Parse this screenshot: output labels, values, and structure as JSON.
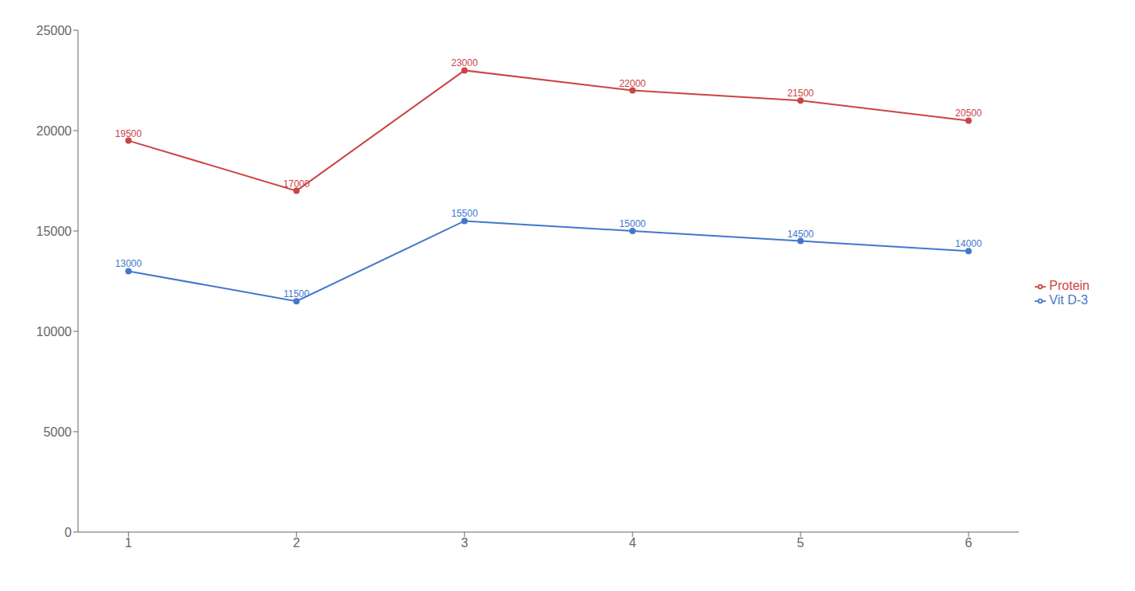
{
  "chart_data": {
    "type": "line",
    "x": [
      1,
      2,
      3,
      4,
      5,
      6
    ],
    "xlim": [
      0.7,
      6.3
    ],
    "xticks": [
      1,
      2,
      3,
      4,
      5,
      6
    ],
    "ylim": [
      0,
      25000
    ],
    "yticks": [
      0,
      5000,
      10000,
      15000,
      20000,
      25000
    ],
    "series": [
      {
        "name": "Protein",
        "color": "#cc4444",
        "values": [
          19500,
          17000,
          23000,
          22000,
          21500,
          20500
        ]
      },
      {
        "name": "Vit D-3",
        "color": "#4477cc",
        "values": [
          13000,
          11500,
          15500,
          15000,
          14500,
          14000
        ]
      }
    ],
    "grid": false,
    "legend": "right",
    "data_labels": true
  }
}
